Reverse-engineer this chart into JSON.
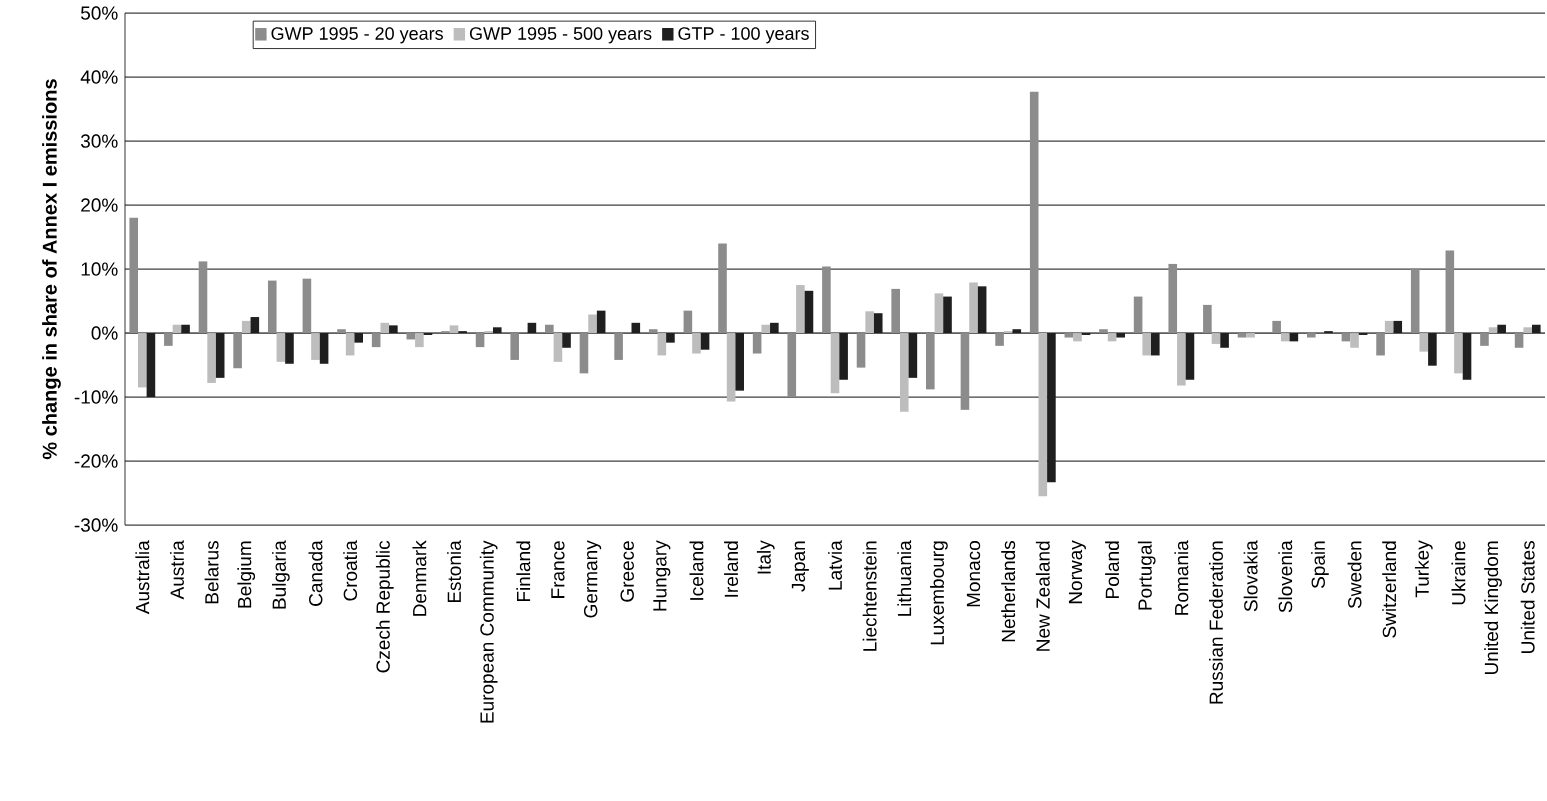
{
  "chart_data": {
    "type": "bar",
    "ylabel": "% change in share of Annex I emissions",
    "categories": [
      "Australia",
      "Austria",
      "Belarus",
      "Belgium",
      "Bulgaria",
      "Canada",
      "Croatia",
      "Czech Republic",
      "Denmark",
      "Estonia",
      "European Community",
      "Finland",
      "France",
      "Germany",
      "Greece",
      "Hungary",
      "Iceland",
      "Ireland",
      "Italy",
      "Japan",
      "Latvia",
      "Liechtenstein",
      "Lithuania",
      "Luxembourg",
      "Monaco",
      "Netherlands",
      "New Zealand",
      "Norway",
      "Poland",
      "Portugal",
      "Romania",
      "Russian Federation",
      "Slovakia",
      "Slovenia",
      "Spain",
      "Sweden",
      "Switzerland",
      "Turkey",
      "Ukraine",
      "United Kingdom",
      "United States"
    ],
    "series": [
      {
        "name": "GWP 1995  - 20 years",
        "color": "#8c8c8c",
        "values": [
          18,
          -2,
          11.2,
          -5.5,
          8.2,
          8.5,
          0.6,
          -2.2,
          -1,
          0.3,
          -2.2,
          -4.2,
          1.3,
          -6.3,
          -4.2,
          0.6,
          3.5,
          14,
          -3.2,
          -10,
          10.4,
          -5.4,
          6.9,
          -8.8,
          -12,
          -2,
          37.7,
          -0.7,
          0.6,
          5.7,
          10.8,
          4.4,
          -0.7,
          1.9,
          -0.7,
          -1.3,
          -3.5,
          10.1,
          12.9,
          -2,
          -2.3
        ]
      },
      {
        "name": "GWP 1995  - 500 years",
        "color": "#bdbdbd",
        "values": [
          -8.5,
          1.3,
          -7.8,
          1.9,
          -4.5,
          -4.2,
          -3.5,
          1.6,
          -2.2,
          1.2,
          0.3,
          0,
          -4.5,
          2.9,
          0,
          -3.5,
          -3.2,
          -10.7,
          1.3,
          7.5,
          -9.4,
          3.4,
          -12.3,
          6.2,
          7.9,
          0.3,
          -25.5,
          -1.3,
          -1.3,
          -3.5,
          -8.2,
          -1.7,
          -0.7,
          -1.3,
          0,
          -2.3,
          1.9,
          -2.9,
          -6.3,
          0.9,
          0.9
        ]
      },
      {
        "name": "GTP - 100 years",
        "color": "#1f1f1f",
        "values": [
          -10,
          1.3,
          -7,
          2.5,
          -4.8,
          -4.8,
          -1.5,
          1.2,
          -0.3,
          0.3,
          0.9,
          1.6,
          -2.3,
          3.5,
          1.6,
          -1.5,
          -2.6,
          -9,
          1.6,
          6.6,
          -7.3,
          3.1,
          -7,
          5.7,
          7.3,
          0.6,
          -23.3,
          -0.3,
          -0.7,
          -3.5,
          -7.3,
          -2.3,
          0,
          -1.3,
          0.3,
          -0.3,
          1.9,
          -5.1,
          -7.3,
          1.3,
          1.3
        ]
      }
    ],
    "ylim": [
      -30,
      50
    ],
    "yticks": [
      {
        "value": -30,
        "label": "-30%"
      },
      {
        "value": -20,
        "label": "-20%"
      },
      {
        "value": -10,
        "label": "-10%"
      },
      {
        "value": 0,
        "label": "0%"
      },
      {
        "value": 10,
        "label": "10%"
      },
      {
        "value": 20,
        "label": "20%"
      },
      {
        "value": 30,
        "label": "30%"
      },
      {
        "value": 40,
        "label": "40%"
      },
      {
        "value": 50,
        "label": "50%"
      }
    ],
    "grid": "y",
    "legend": "top left"
  }
}
